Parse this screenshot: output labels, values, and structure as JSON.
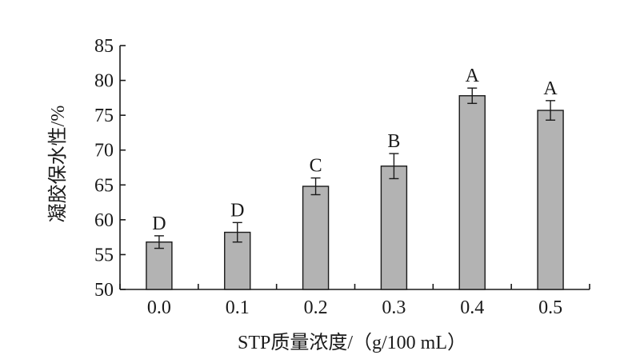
{
  "chart_data": {
    "type": "bar",
    "categories": [
      "0.0",
      "0.1",
      "0.2",
      "0.3",
      "0.4",
      "0.5"
    ],
    "values": [
      56.8,
      58.2,
      64.8,
      67.7,
      77.8,
      75.7
    ],
    "errors": [
      0.9,
      1.4,
      1.2,
      1.8,
      1.1,
      1.4
    ],
    "significance": [
      "D",
      "D",
      "C",
      "B",
      "A",
      "A"
    ],
    "xlabel": "STP质量浓度/（g/100 mL）",
    "ylabel": "凝胶保水性/%",
    "ylim": [
      50,
      85
    ],
    "yticks": [
      "50",
      "55",
      "60",
      "65",
      "70",
      "75",
      "80",
      "85"
    ],
    "grid": false,
    "colors": {
      "bar_fill": "#b3b3b3",
      "stroke": "#1a1a1a"
    }
  }
}
